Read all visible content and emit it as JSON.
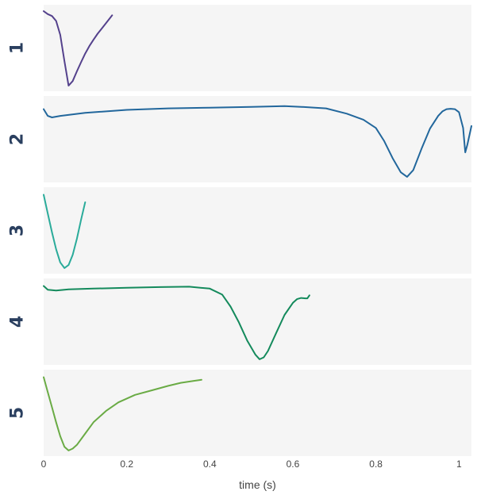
{
  "chart_data": {
    "type": "line",
    "xlabel": "time (s)",
    "xlim": [
      0,
      1.03
    ],
    "x_ticks": [
      {
        "value": 0,
        "label": "0"
      },
      {
        "value": 0.2,
        "label": "0.2"
      },
      {
        "value": 0.4,
        "label": "0.4"
      },
      {
        "value": 0.6,
        "label": "0.6"
      },
      {
        "value": 0.8,
        "label": "0.8"
      },
      {
        "value": 1,
        "label": "1"
      }
    ],
    "ylim": [
      -1.15,
      1.15
    ],
    "grid": false,
    "panels": [
      {
        "label": "1",
        "color": "#54418c",
        "x": [
          0,
          0.01,
          0.02,
          0.03,
          0.04,
          0.05,
          0.06,
          0.07,
          0.08,
          0.09,
          0.1,
          0.11,
          0.12,
          0.13,
          0.14,
          0.15,
          0.16,
          0.165
        ],
        "y": [
          0.98,
          0.9,
          0.85,
          0.72,
          0.35,
          -0.35,
          -1.0,
          -0.88,
          -0.62,
          -0.38,
          -0.15,
          0.05,
          0.22,
          0.38,
          0.52,
          0.66,
          0.8,
          0.87
        ]
      },
      {
        "label": "2",
        "color": "#22679c",
        "x": [
          0,
          0.01,
          0.02,
          0.04,
          0.1,
          0.2,
          0.3,
          0.4,
          0.5,
          0.58,
          0.62,
          0.68,
          0.73,
          0.77,
          0.8,
          0.82,
          0.84,
          0.86,
          0.875,
          0.89,
          0.91,
          0.93,
          0.95,
          0.96,
          0.97,
          0.98,
          0.99,
          1.0,
          1.01,
          1.015,
          1.02,
          1.03
        ],
        "y": [
          0.8,
          0.62,
          0.58,
          0.62,
          0.7,
          0.78,
          0.82,
          0.84,
          0.86,
          0.88,
          0.86,
          0.82,
          0.68,
          0.52,
          0.3,
          -0.05,
          -0.5,
          -0.88,
          -1.0,
          -0.82,
          -0.25,
          0.28,
          0.62,
          0.74,
          0.8,
          0.81,
          0.8,
          0.72,
          0.3,
          -0.35,
          -0.15,
          0.35
        ]
      },
      {
        "label": "3",
        "color": "#2aab9a",
        "x": [
          0,
          0.01,
          0.02,
          0.03,
          0.04,
          0.05,
          0.06,
          0.07,
          0.08,
          0.09,
          0.1
        ],
        "y": [
          0.95,
          0.45,
          -0.05,
          -0.5,
          -0.85,
          -1.0,
          -0.92,
          -0.65,
          -0.22,
          0.28,
          0.75
        ]
      },
      {
        "label": "4",
        "color": "#148a5c",
        "x": [
          0,
          0.01,
          0.03,
          0.06,
          0.12,
          0.2,
          0.28,
          0.35,
          0.4,
          0.43,
          0.45,
          0.47,
          0.49,
          0.51,
          0.52,
          0.53,
          0.54,
          0.56,
          0.58,
          0.6,
          0.61,
          0.62,
          0.63,
          0.635,
          0.64
        ],
        "y": [
          0.95,
          0.85,
          0.83,
          0.86,
          0.88,
          0.9,
          0.92,
          0.93,
          0.88,
          0.72,
          0.4,
          -0.02,
          -0.5,
          -0.88,
          -1.0,
          -0.95,
          -0.78,
          -0.3,
          0.18,
          0.5,
          0.6,
          0.63,
          0.62,
          0.62,
          0.7
        ]
      },
      {
        "label": "5",
        "color": "#6aab45",
        "x": [
          0,
          0.01,
          0.02,
          0.03,
          0.04,
          0.05,
          0.06,
          0.07,
          0.08,
          0.1,
          0.12,
          0.15,
          0.18,
          0.22,
          0.26,
          0.3,
          0.33,
          0.36,
          0.38
        ],
        "y": [
          0.95,
          0.55,
          0.15,
          -0.25,
          -0.62,
          -0.9,
          -1.0,
          -0.95,
          -0.85,
          -0.55,
          -0.25,
          0.05,
          0.28,
          0.48,
          0.6,
          0.72,
          0.8,
          0.85,
          0.88
        ]
      }
    ]
  }
}
